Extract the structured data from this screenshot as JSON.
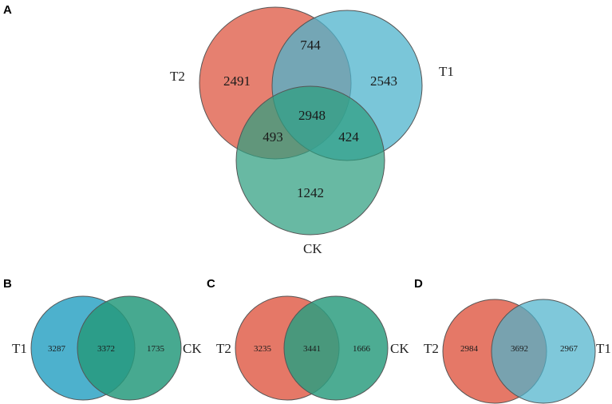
{
  "colors": {
    "T2": "#e0604c",
    "T1": "#4db3cc",
    "CK": "#2e9e80",
    "T1_vs_CK_T1": "#3aa9c8",
    "T1_vs_CK_CK": "#279a7c"
  },
  "panels": {
    "A": {
      "label": "A",
      "set_labels": {
        "T2": "T2",
        "T1": "T1",
        "CK": "CK"
      },
      "counts": {
        "T2_only": "2491",
        "T1_only": "2543",
        "CK_only": "1242",
        "T2_T1": "744",
        "T2_CK": "493",
        "T1_CK": "424",
        "all": "2948"
      }
    },
    "B": {
      "label": "B",
      "left_label": "T1",
      "right_label": "CK",
      "left_only": "3287",
      "shared": "3372",
      "right_only": "1735"
    },
    "C": {
      "label": "C",
      "left_label": "T2",
      "right_label": "CK",
      "left_only": "3235",
      "shared": "3441",
      "right_only": "1666"
    },
    "D": {
      "label": "D",
      "left_label": "T2",
      "right_label": "T1",
      "left_only": "2984",
      "shared": "3692",
      "right_only": "2967"
    }
  }
}
